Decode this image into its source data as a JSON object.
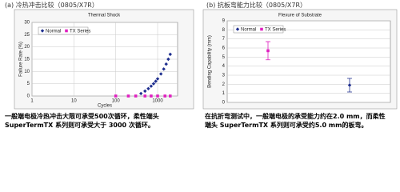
{
  "panels": [
    {
      "heading": "(a) 冷热冲击比较（0805/X7R）",
      "caption": "一般端电极冷热冲击大限可承受500次循环，柔性端头 SuperTermTX 系列则可承受大于 3000 次循环。"
    },
    {
      "heading": "(b) 抗板弯能力比较（0805/X7R）",
      "caption": "在抗折弯测试中，一般端电极的承受能力约在2.0 mm，而柔性端头 SuperTermTX 系列则可承受约5.0 mm的板弯。"
    }
  ],
  "chart_data": [
    {
      "type": "scatter",
      "title": "Thermal Shock",
      "x_label": "Cycles",
      "y_label": "Failure Rate (%)",
      "xscale": "log",
      "xlim": [
        1,
        3000
      ],
      "xticks": [
        1,
        10,
        100,
        1000
      ],
      "ylim": [
        0,
        30
      ],
      "yticks": [
        0,
        5,
        10,
        15,
        20,
        25,
        30
      ],
      "grid": true,
      "legend": "top-left",
      "series": [
        {
          "name": "Normal",
          "color": "#1f2f8f",
          "marker": "diamond",
          "x": [
            400,
            500,
            600,
            700,
            800,
            900,
            1000,
            1200,
            1400,
            1600,
            1800,
            2000
          ],
          "values": [
            1,
            2,
            3,
            4,
            5,
            6,
            7,
            9,
            11,
            13,
            15,
            17
          ]
        },
        {
          "name": "TX Series",
          "color": "#e020c0",
          "marker": "square",
          "x": [
            100,
            200,
            300,
            500,
            700,
            1000,
            1500,
            2000
          ],
          "values": [
            0,
            0,
            0,
            0,
            0,
            0,
            0,
            0
          ]
        }
      ]
    },
    {
      "type": "errorbar",
      "title": "Flexure of Substrate",
      "y_label": "Bending Capability (mm)",
      "categories": [
        null,
        null
      ],
      "ylim": [
        0,
        9
      ],
      "yticks": [
        0,
        1,
        2,
        3,
        4,
        5,
        6,
        7,
        8,
        9
      ],
      "grid": true,
      "legend": "top-left",
      "series": [
        {
          "name": "Normal",
          "color": "#1f2f8f",
          "marker": "diamond",
          "values": [
            null,
            1.9
          ],
          "errors": [
            null,
            0.75
          ]
        },
        {
          "name": "TX Series",
          "color": "#e020c0",
          "marker": "square",
          "values": [
            5.7,
            null
          ],
          "errors": [
            1.0,
            null
          ]
        }
      ]
    }
  ]
}
